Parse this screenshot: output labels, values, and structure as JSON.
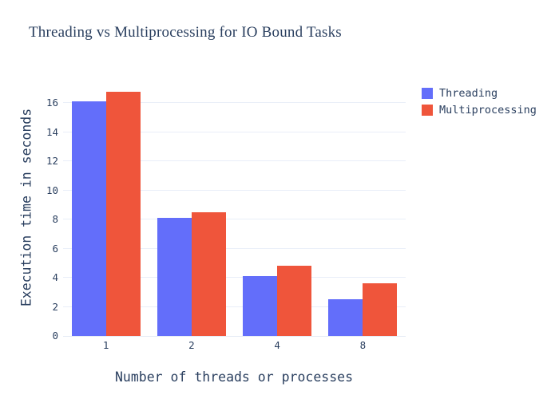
{
  "chart_data": {
    "type": "bar",
    "title": "Threading vs Multiprocessing for IO Bound Tasks",
    "xlabel": "Number of threads or processes",
    "ylabel": "Execution time in seconds",
    "categories": [
      "1",
      "2",
      "4",
      "8"
    ],
    "series": [
      {
        "name": "Threading",
        "color": "#636EFA",
        "values": [
          16.1,
          8.1,
          4.1,
          2.5
        ]
      },
      {
        "name": "Multiprocessing",
        "color": "#EF553B",
        "values": [
          16.8,
          8.5,
          4.8,
          3.6
        ]
      }
    ],
    "yticks": [
      0,
      2,
      4,
      6,
      8,
      10,
      12,
      14,
      16
    ],
    "ylim": [
      0,
      17.65
    ],
    "grid": true,
    "legend_position": "top-right",
    "colors": {
      "text": "#2a3f5f",
      "gridline": "#e9eef8",
      "zeroline": "#e5ebf5",
      "background": "#ffffff"
    }
  }
}
